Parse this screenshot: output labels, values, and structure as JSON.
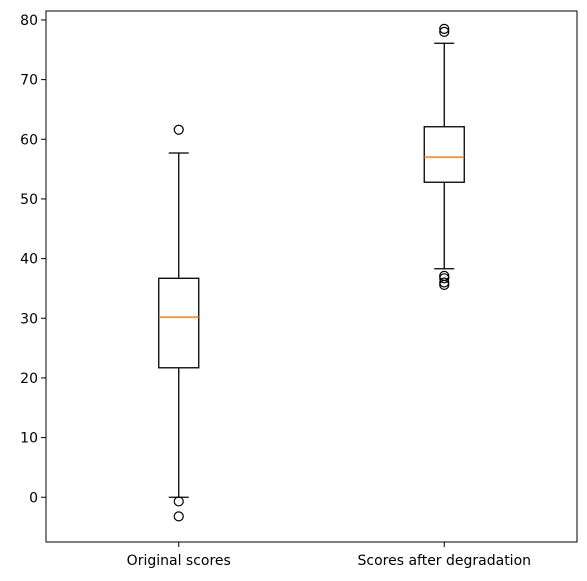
{
  "chart_data": {
    "type": "boxplot",
    "title": "",
    "xlabel": "",
    "ylabel": "",
    "categories": [
      "Original scores",
      "Scores after degradation"
    ],
    "ylim": [
      -7.5,
      81.5
    ],
    "yticks": [
      0,
      10,
      20,
      30,
      40,
      50,
      60,
      70,
      80
    ],
    "grid": false,
    "boxes": [
      {
        "label": "Original scores",
        "whisker_low": 0,
        "q1": 21.7,
        "median": 30.2,
        "q3": 36.7,
        "whisker_high": 57.7,
        "outliers": [
          61.6,
          -0.7,
          -3.2
        ]
      },
      {
        "label": "Scores after degradation",
        "whisker_low": 38.3,
        "q1": 52.8,
        "median": 57,
        "q3": 62.1,
        "whisker_high": 76.1,
        "outliers": [
          78.5,
          78,
          37.1,
          36.7,
          36,
          35.6
        ]
      }
    ],
    "colors": {
      "box": "#000000",
      "median": "#ff7f0e",
      "outlier": "#000000"
    }
  }
}
